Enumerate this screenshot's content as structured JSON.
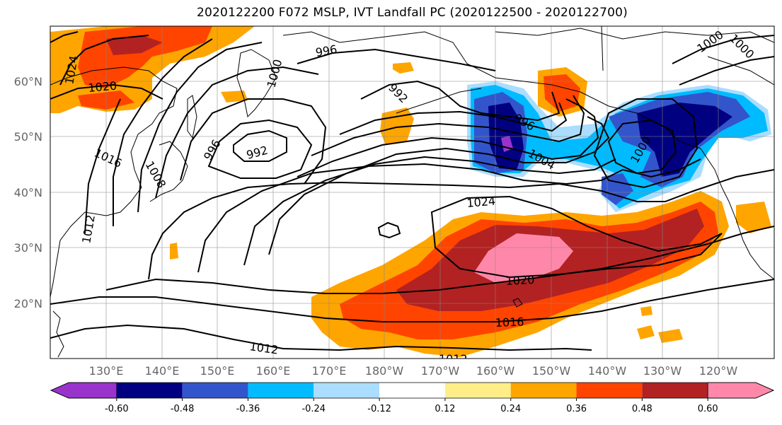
{
  "title": "2020122200 F072 MSLP, IVT Landfall PC (2020122500 - 2020122700)",
  "lat_labels": [
    "60°N",
    "50°N",
    "40°N",
    "30°N",
    "20°N"
  ],
  "lon_labels": [
    "130°E",
    "140°E",
    "150°E",
    "160°E",
    "170°E",
    "180°W",
    "170°W",
    "160°W",
    "150°W",
    "140°W",
    "130°W",
    "120°W"
  ],
  "colorbar": {
    "levels": [
      "-0.60",
      "-0.48",
      "-0.36",
      "-0.24",
      "-0.12",
      "0.12",
      "0.24",
      "0.36",
      "0.48",
      "0.60"
    ],
    "colors": [
      "#9933cc",
      "#000080",
      "#3355cc",
      "#00bbff",
      "#aaddff",
      "#ffffff",
      "#ffee88",
      "#ffa500",
      "#ff4400",
      "#b22222",
      "#ff88aa"
    ]
  },
  "contour_labels": [
    "996",
    "1000",
    "992",
    "1024",
    "1020",
    "1016",
    "1008",
    "1012",
    "992",
    "996",
    "1004",
    "1000",
    "1024",
    "1020",
    "1016",
    "1012",
    "1000"
  ],
  "legend_colors": {
    "purple": "#9933cc",
    "navy": "#000080",
    "blue": "#3355cc",
    "sky": "#00bbff",
    "light_blue": "#aaddff",
    "yellow": "#ffee88",
    "orange": "#ffa500",
    "red_orange": "#ff4400",
    "firebrick": "#b22222",
    "pink": "#ff88aa"
  }
}
